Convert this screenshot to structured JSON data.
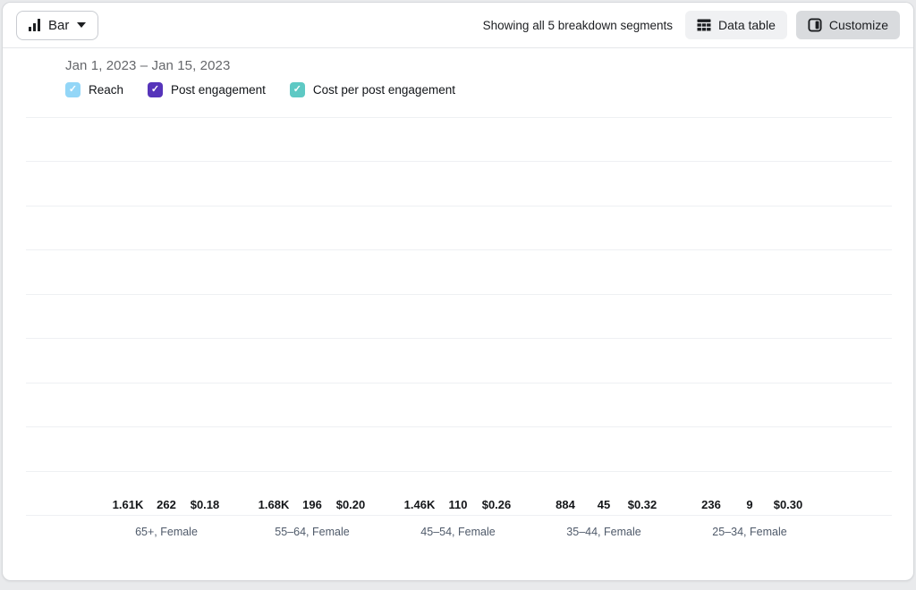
{
  "toolbar": {
    "chart_type_label": "Bar",
    "segments_text": "Showing all 5 breakdown segments",
    "data_table_label": "Data table",
    "customize_label": "Customize"
  },
  "date_range": "Jan 1, 2023 – Jan 15, 2023",
  "legend": [
    {
      "label": "Reach",
      "color": "#93d6f7"
    },
    {
      "label": "Post engagement",
      "color": "#5634ba"
    },
    {
      "label": "Cost per post engagement",
      "color": "#5ec9c4"
    }
  ],
  "colors": {
    "reach": "#93d6f7",
    "post_engagement": "#5634ba",
    "cost_per_post_engagement": "#5ec9c4",
    "gridline": "#eef0f3",
    "button_light_bg": "#f0f1f3",
    "button_active_bg": "#d9dbde"
  },
  "chart_data": {
    "type": "bar",
    "title": "",
    "xlabel": "",
    "ylabel": "",
    "grid": true,
    "gridline_count": 10,
    "legend_position": "top",
    "categories": [
      "65+, Female",
      "55–64, Female",
      "45–54, Female",
      "35–44, Female",
      "25–34, Female"
    ],
    "series": [
      {
        "name": "Reach",
        "color": "#93d6f7",
        "values": [
          1610,
          1680,
          1460,
          884,
          236
        ],
        "value_labels": [
          "1.61K",
          "1.68K",
          "1.46K",
          "884",
          "236"
        ],
        "axis_max": 1800
      },
      {
        "name": "Post engagement",
        "color": "#5634ba",
        "values": [
          262,
          196,
          110,
          45,
          9
        ],
        "value_labels": [
          "262",
          "196",
          "110",
          "45",
          "9"
        ],
        "axis_max": 300
      },
      {
        "name": "Cost per post engagement",
        "color": "#5ec9c4",
        "values": [
          0.18,
          0.2,
          0.26,
          0.32,
          0.3
        ],
        "value_labels": [
          "$0.18",
          "$0.20",
          "$0.26",
          "$0.32",
          "$0.30"
        ],
        "axis_max": 0.35
      }
    ]
  }
}
